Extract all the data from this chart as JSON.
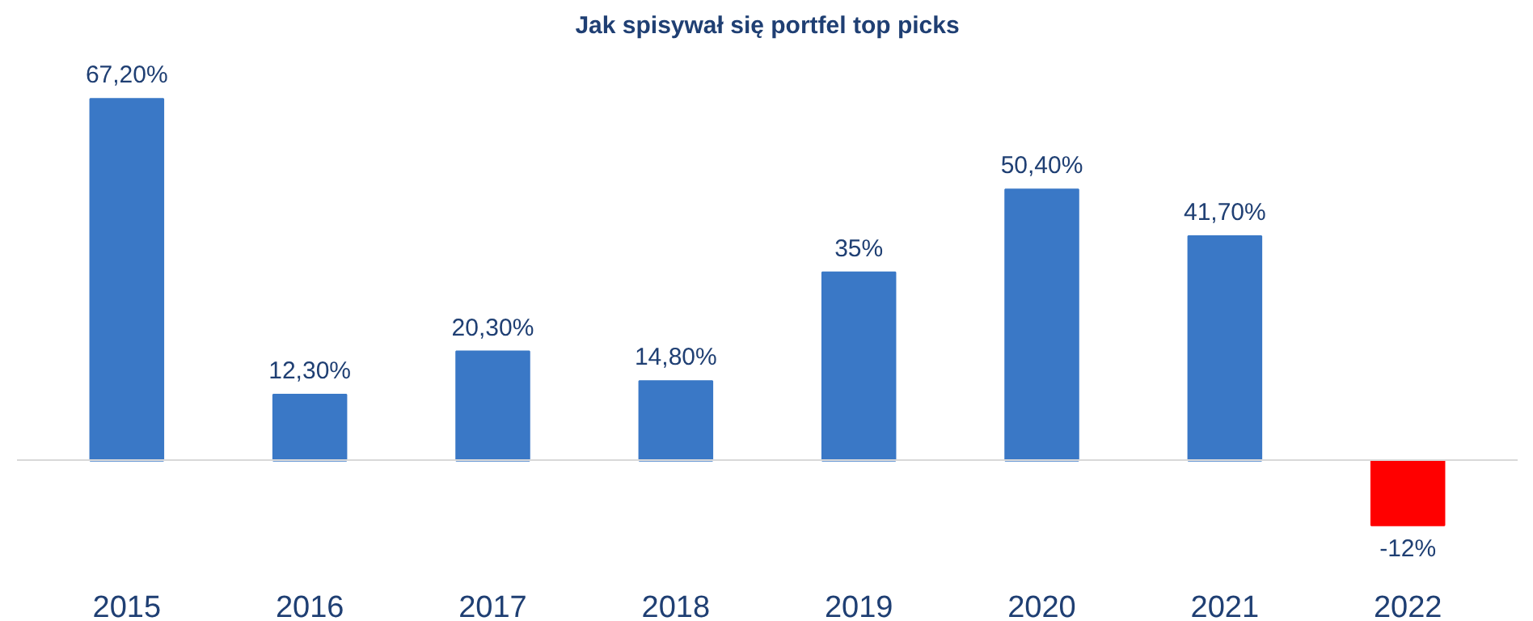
{
  "chart_data": {
    "type": "bar",
    "title": "Jak spisywał się portfel top picks",
    "categories": [
      "2015",
      "2016",
      "2017",
      "2018",
      "2019",
      "2020",
      "2021",
      "2022"
    ],
    "values": [
      67.2,
      12.3,
      20.3,
      14.8,
      35,
      50.4,
      41.7,
      -12
    ],
    "colors": [
      "#3a78c6",
      "#3a78c6",
      "#3a78c6",
      "#3a78c6",
      "#3a78c6",
      "#3a78c6",
      "#3a78c6",
      "#ff0000"
    ],
    "value_labels": [
      "67,20%",
      "12,30%",
      "20,30%",
      "14,80%",
      "35%",
      "50,40%",
      "41,70%",
      "-12%"
    ],
    "grid": false
  }
}
